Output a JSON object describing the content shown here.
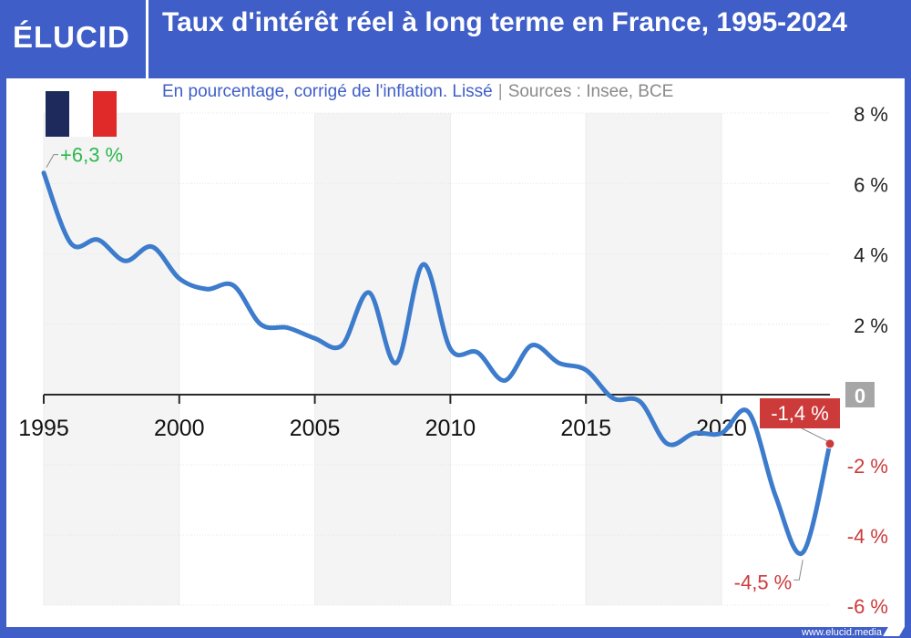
{
  "brand": {
    "logo_text": "ÉLUCID",
    "url": "www.elucid.media"
  },
  "header": {
    "title": "Taux d'intérêt réel à long terme en France, 1995-2024"
  },
  "subtitle": {
    "text": "En pourcentage, corrigé de l'inflation. Lissé",
    "sources": "Sources : Insee, BCE"
  },
  "colors": {
    "brand": "#3f5ec8",
    "line": "#3d7ccc",
    "positive": "#2db84d",
    "negative": "#cc3a3a",
    "zero_badge": "#a6a6a6"
  },
  "icons": {
    "flag": "france-flag-icon"
  },
  "chart_data": {
    "type": "line",
    "x": [
      1995,
      1996,
      1997,
      1998,
      1999,
      2000,
      2001,
      2002,
      2003,
      2004,
      2005,
      2006,
      2007,
      2008,
      2009,
      2010,
      2011,
      2012,
      2013,
      2014,
      2015,
      2016,
      2017,
      2018,
      2019,
      2020,
      2021,
      2022,
      2023,
      2024
    ],
    "values": [
      6.3,
      4.3,
      4.4,
      3.8,
      4.2,
      3.3,
      3.0,
      3.1,
      2.0,
      1.9,
      1.6,
      1.4,
      2.9,
      0.9,
      3.7,
      1.3,
      1.2,
      0.4,
      1.4,
      0.9,
      0.7,
      -0.1,
      -0.2,
      -1.4,
      -1.1,
      -1.1,
      -0.5,
      -2.9,
      -4.5,
      -1.4
    ],
    "x_ticks": [
      "1995",
      "2000",
      "2005",
      "2010",
      "2015",
      "2020"
    ],
    "x_tick_values": [
      1995,
      2000,
      2005,
      2010,
      2015,
      2020
    ],
    "y_ticks": [
      "8 %",
      "6 %",
      "4 %",
      "2 %",
      "0",
      "-2 %",
      "-4 %",
      "-6 %"
    ],
    "y_tick_values": [
      8,
      6,
      4,
      2,
      0,
      -2,
      -4,
      -6
    ],
    "xlim": [
      1995,
      2024
    ],
    "ylim": [
      -6,
      8
    ],
    "grid": true,
    "annotations": [
      {
        "text": "+6,3 %",
        "x": 1995,
        "y": 6.3,
        "tone": "positive"
      },
      {
        "text": "-4,5 %",
        "x": 2023,
        "y": -4.5,
        "tone": "negative"
      },
      {
        "text": "-1,4 %",
        "x": 2024,
        "y": -1.4,
        "tone": "negative_box"
      }
    ]
  }
}
